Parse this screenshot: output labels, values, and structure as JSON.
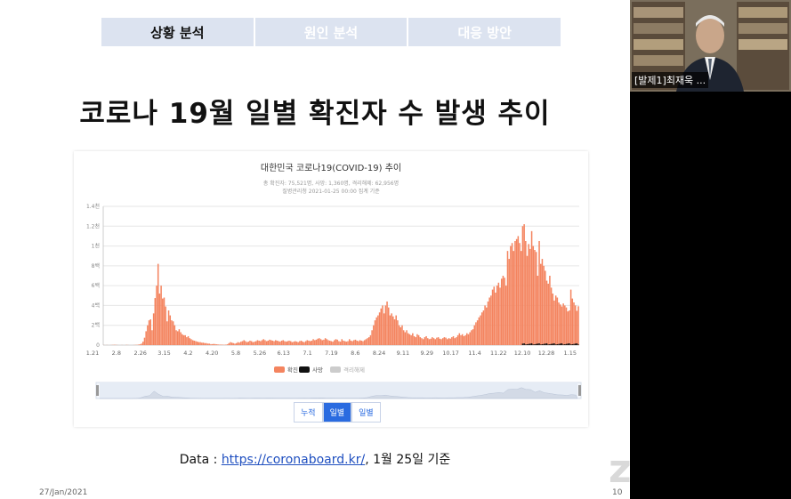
{
  "nav": {
    "tabs": [
      {
        "label": "상황 분석",
        "active": true
      },
      {
        "label": "원인 분석",
        "active": false
      },
      {
        "label": "대응 방안",
        "active": false
      }
    ]
  },
  "slide": {
    "title": "코로나 19월 일별 확진자 수 발생 추이",
    "source_prefix": "Data : ",
    "source_link": "https://coronaboard.kr/",
    "source_suffix": ", 1월 25일 기준",
    "footer_date": "27/Jan/2021",
    "page_number": "10"
  },
  "webcam": {
    "participant_label": "[발제1]최재욱 ..."
  },
  "zoom": {
    "logo": "zoom"
  },
  "chart_buttons": {
    "cumulative": "누적",
    "daily": "일별",
    "weekly": "일별"
  },
  "colors": {
    "confirmed": "#f4845f",
    "deaths": "#111111",
    "released": "#cccccc",
    "accent": "#2a6be0"
  },
  "chart_data": {
    "type": "bar",
    "title": "대한민국 코로나19(COVID-19) 추이",
    "subtitle": "총 확진자: 75,521명, 사망: 1,360명, 격리해제: 62,956명",
    "subtitle2": "질병관리청 2021-01-25 00:00 집계 기준",
    "ylim": [
      0,
      1400
    ],
    "yticks": [
      "0",
      "2백",
      "4백",
      "6백",
      "8백",
      "1천",
      "1.2천",
      "1.4천"
    ],
    "ytick_values": [
      0,
      200,
      400,
      600,
      800,
      1000,
      1200,
      1400
    ],
    "xtick_labels": [
      "1.21",
      "2.8",
      "2.26",
      "3.15",
      "4.2",
      "4.20",
      "5.8",
      "5.26",
      "6.13",
      "7.1",
      "7.19",
      "8.6",
      "8.24",
      "9.11",
      "9.29",
      "10.17",
      "11.4",
      "11.22",
      "12.10",
      "12.28",
      "1.15"
    ],
    "legend": [
      "확진",
      "사망",
      "격리해제"
    ],
    "series": [
      {
        "name": "확진",
        "values": [
          1,
          0,
          1,
          0,
          0,
          1,
          2,
          3,
          2,
          1,
          0,
          0,
          1,
          0,
          0,
          2,
          1,
          0,
          0,
          0,
          1,
          2,
          3,
          5,
          8,
          15,
          35,
          75,
          140,
          200,
          250,
          260,
          150,
          320,
          475,
          600,
          820,
          520,
          600,
          470,
          480,
          390,
          240,
          350,
          300,
          250,
          240,
          200,
          150,
          140,
          160,
          130,
          110,
          100,
          100,
          80,
          90,
          70,
          60,
          50,
          45,
          40,
          35,
          30,
          30,
          25,
          25,
          20,
          20,
          15,
          15,
          10,
          10,
          12,
          10,
          8,
          6,
          5,
          5,
          4,
          3,
          5,
          8,
          20,
          30,
          25,
          20,
          15,
          20,
          30,
          25,
          35,
          40,
          50,
          40,
          30,
          35,
          45,
          40,
          30,
          35,
          40,
          50,
          45,
          40,
          50,
          60,
          50,
          40,
          45,
          55,
          50,
          45,
          40,
          50,
          45,
          40,
          35,
          45,
          50,
          40,
          35,
          40,
          45,
          40,
          30,
          35,
          40,
          35,
          30,
          40,
          45,
          35,
          30,
          40,
          50,
          45,
          40,
          45,
          60,
          50,
          55,
          65,
          70,
          60,
          50,
          55,
          70,
          60,
          50,
          45,
          40,
          35,
          50,
          60,
          55,
          40,
          35,
          60,
          45,
          40,
          35,
          40,
          60,
          45,
          40,
          50,
          55,
          45,
          40,
          50,
          45,
          40,
          50,
          60,
          70,
          80,
          100,
          150,
          200,
          250,
          280,
          300,
          330,
          370,
          400,
          320,
          400,
          440,
          380,
          300,
          320,
          290,
          260,
          300,
          250,
          200,
          180,
          200,
          150,
          130,
          150,
          120,
          110,
          100,
          120,
          90,
          80,
          110,
          100,
          80,
          70,
          60,
          80,
          90,
          70,
          60,
          65,
          80,
          70,
          60,
          75,
          80,
          65,
          60,
          70,
          80,
          75,
          60,
          70,
          65,
          80,
          90,
          70,
          80,
          100,
          120,
          100,
          110,
          90,
          100,
          120,
          110,
          130,
          150,
          160,
          200,
          230,
          250,
          280,
          300,
          330,
          350,
          400,
          380,
          440,
          480,
          500,
          560,
          590,
          530,
          600,
          630,
          580,
          670,
          700,
          680,
          600,
          950,
          870,
          1000,
          1030,
          950,
          1050,
          1070,
          1100,
          1030,
          950,
          1200,
          1220,
          1050,
          900,
          1020,
          970,
          1150,
          1000,
          960,
          940,
          700,
          1050,
          820,
          870,
          800,
          750,
          650,
          620,
          700,
          580,
          520,
          450,
          500,
          480,
          430,
          410,
          390,
          420,
          400,
          380,
          340,
          350,
          560,
          470,
          431,
          400,
          346,
          392
        ]
      },
      {
        "name": "사망",
        "values_note": "small (0-40 range)"
      }
    ]
  }
}
